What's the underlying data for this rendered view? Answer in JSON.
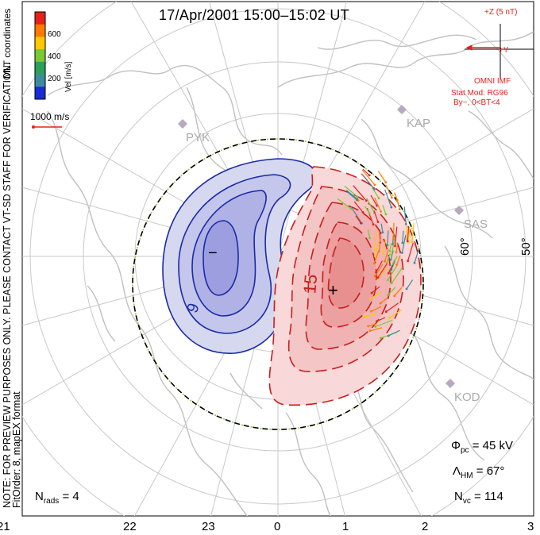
{
  "title": "17/Apr/2001 15:00–15:02 UT",
  "colorbar": {
    "title": "Vel [m/s]",
    "ticks": [
      "600",
      "400",
      "200"
    ],
    "colors": [
      "#e8201c",
      "#ff7a00",
      "#ffc800",
      "#7ac832",
      "#2aa05a",
      "#3c8ca0",
      "#1a2ad8"
    ],
    "coord_label": "MLT coordinates"
  },
  "vector_scale": {
    "label": "1000 m/s"
  },
  "side_note": {
    "line1": "NOTE: FOR PREVIEW PURPOSES ONLY. PLEASE CONTACT VT-SD STAFF FOR VERIFICATION.",
    "line2": "FitOrder: 8, mapEX format"
  },
  "imf": {
    "z_label": "+Z (5 nT)",
    "y_label": "+Y",
    "source": "OMNI IMF",
    "stat_mod": "Stat Mod: RG96",
    "condition": "By−, 0<BT<4"
  },
  "stations": [
    "PYK",
    "KAP",
    "SAS",
    "KOD"
  ],
  "latitude_labels": [
    "60°",
    "50°"
  ],
  "contour_labels": {
    "negative": "9",
    "positive": "15"
  },
  "potential_markers": {
    "min": "−",
    "max": "+"
  },
  "stats": {
    "phi_symbol": "Φ",
    "phi_sub": "pc",
    "phi_value": "= 45 kV",
    "lambda_symbol": "Λ",
    "lambda_sub": "HM",
    "lambda_value": "= 67°",
    "nvc_symbol": "N",
    "nvc_sub": "vc",
    "nvc_value": "= 114",
    "nrads_symbol": "N",
    "nrads_sub": "rads",
    "nrads_value": "= 4"
  },
  "mlt_axis": [
    "21",
    "22",
    "23",
    "0",
    "1",
    "2",
    "3"
  ],
  "colors": {
    "negative_contour": "#1a2aa8",
    "negative_fill": "#d6d8f0",
    "positive_contour": "#c81e1e",
    "positive_fill": "#f8d8d8",
    "coastline": "#c0c0c0",
    "grid": "#c8c8c8",
    "hmb": "#000000"
  }
}
